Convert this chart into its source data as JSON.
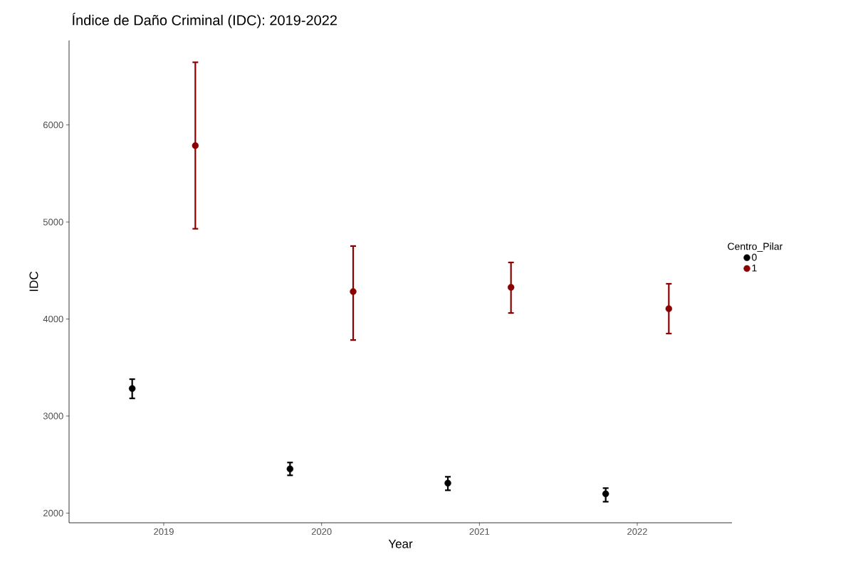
{
  "chart_data": {
    "type": "scatter",
    "title": "Índice de Daño Criminal (IDC): 2019-2022",
    "xlabel": "Year",
    "ylabel": "IDC",
    "legend_title": "Centro_Pilar",
    "series": [
      {
        "name": "0",
        "color": "#000000",
        "x": [
          2018.8,
          2019.8,
          2020.8,
          2021.8
        ],
        "values": [
          3284,
          2455,
          2308,
          2198
        ],
        "errors": [
          [
            3182,
            3380
          ],
          [
            2389,
            2521
          ],
          [
            2235,
            2374
          ],
          [
            2117,
            2257
          ]
        ]
      },
      {
        "name": "1",
        "color": "#8b0000",
        "x": [
          2019.2,
          2020.2,
          2021.2,
          2022.2
        ],
        "values": [
          5787,
          4283,
          4327,
          4106
        ],
        "errors": [
          [
            4930,
            6646
          ],
          [
            3783,
            4752
          ],
          [
            4062,
            4583
          ],
          [
            3850,
            4363
          ]
        ]
      }
    ],
    "xlim": [
      2018.4,
      2022.6
    ],
    "xticks": [
      2019,
      2020,
      2021,
      2022
    ],
    "ylim": [
      1900,
      6870
    ],
    "yticks": [
      2000,
      3000,
      4000,
      5000,
      6000
    ],
    "grid": false,
    "legend": "right",
    "marker": "circle"
  }
}
